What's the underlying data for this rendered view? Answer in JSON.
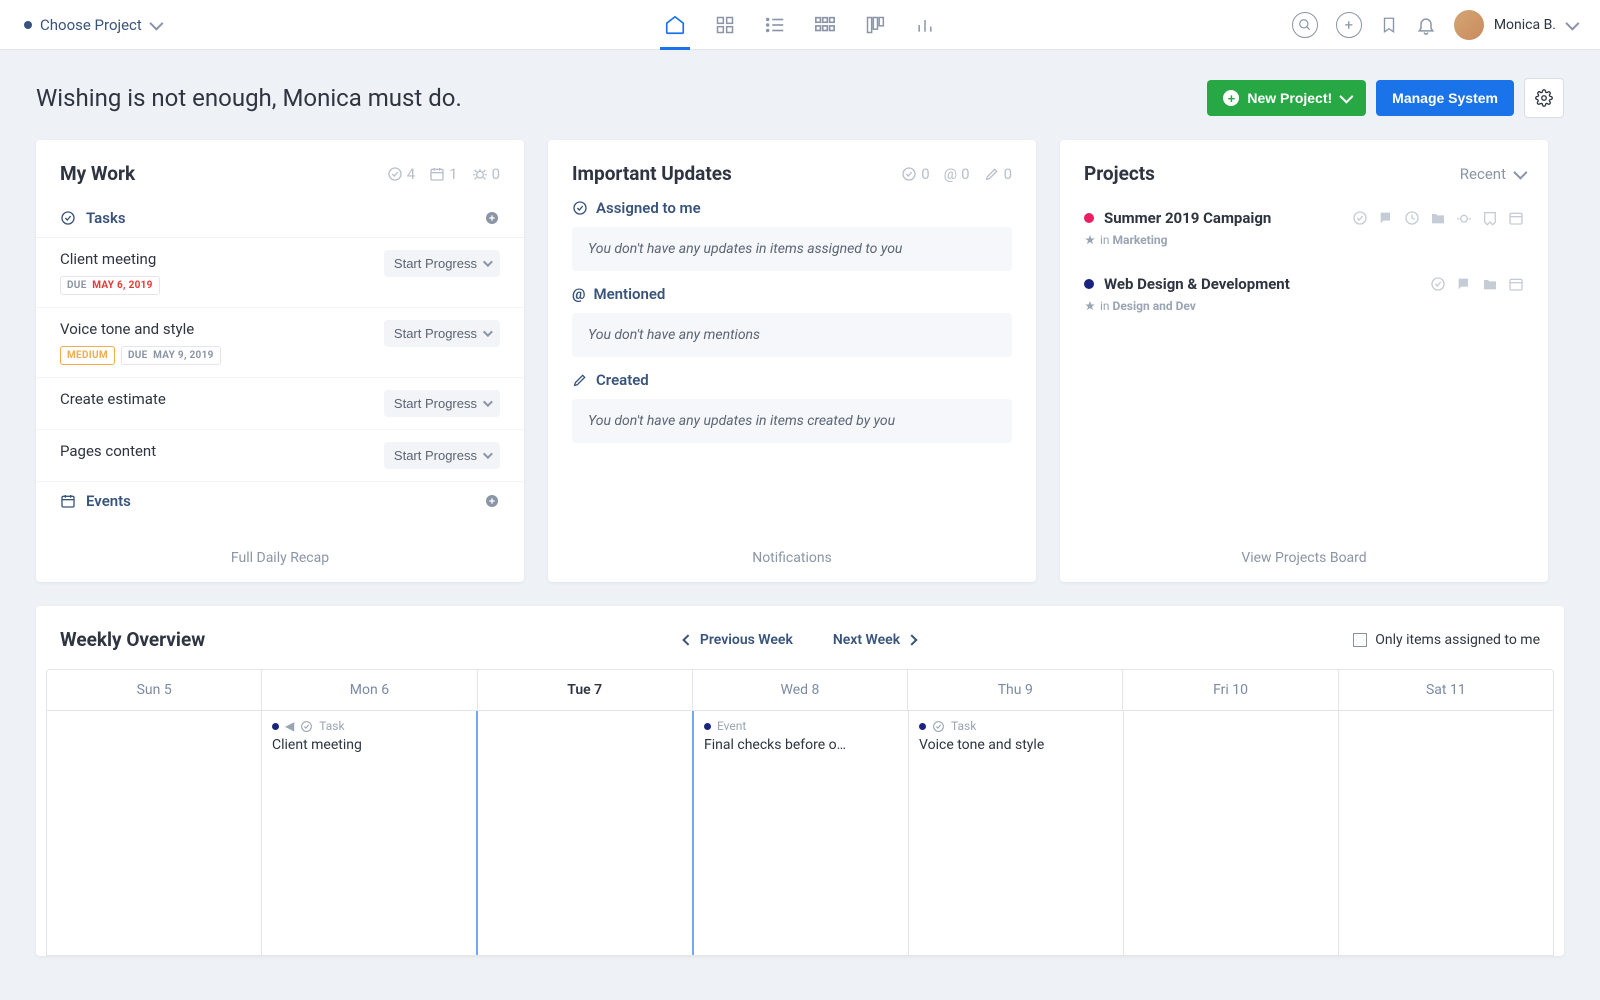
{
  "topbar": {
    "project_chooser": "Choose Project",
    "user_name": "Monica B."
  },
  "header": {
    "greeting": "Wishing is not enough, Monica must do.",
    "new_project_label": "New Project!",
    "manage_system_label": "Manage System"
  },
  "mywork": {
    "title": "My Work",
    "counts": {
      "done": "4",
      "calendar": "1",
      "bug": "0"
    },
    "tasks_label": "Tasks",
    "events_label": "Events",
    "footer": "Full Daily Recap",
    "start_label": "Start Progress",
    "tasks": [
      {
        "title": "Client meeting",
        "due_prefix": "DUE",
        "due_date": "MAY 6, 2019",
        "due_color": "#e53935",
        "priority": null
      },
      {
        "title": "Voice tone and style",
        "due_prefix": "DUE",
        "due_date": "MAY 9, 2019",
        "due_color": "#8a95a6",
        "priority": "MEDIUM"
      },
      {
        "title": "Create estimate",
        "due_prefix": null,
        "due_date": null,
        "due_color": null,
        "priority": null
      },
      {
        "title": "Pages content",
        "due_prefix": null,
        "due_date": null,
        "due_color": null,
        "priority": null
      }
    ]
  },
  "updates": {
    "title": "Important Updates",
    "counts": {
      "check": "0",
      "at": "0",
      "pencil": "0"
    },
    "sections": [
      {
        "icon": "check",
        "label": "Assigned to me",
        "empty": "You don't have any updates in items assigned to you"
      },
      {
        "icon": "at",
        "label": "Mentioned",
        "empty": "You don't have any mentions"
      },
      {
        "icon": "pencil",
        "label": "Created",
        "empty": "You don't have any updates in items created by you"
      }
    ],
    "footer": "Notifications"
  },
  "projects": {
    "title": "Projects",
    "filter": "Recent",
    "footer": "View Projects Board",
    "items": [
      {
        "name": "Summer 2019 Campaign",
        "dot_color": "#e91e63",
        "sub_prefix": "in",
        "sub": "Marketing",
        "icon_count": 7
      },
      {
        "name": "Web Design & Development",
        "dot_color": "#1a237e",
        "sub_prefix": "in",
        "sub": "Design and Dev",
        "icon_count": 4
      }
    ]
  },
  "weekly": {
    "title": "Weekly Overview",
    "prev": "Previous Week",
    "next": "Next Week",
    "filter_label": "Only items assigned to me",
    "days": [
      {
        "label": "Sun 5",
        "today": false
      },
      {
        "label": "Mon 6",
        "today": false
      },
      {
        "label": "Tue 7",
        "today": true
      },
      {
        "label": "Wed 8",
        "today": false
      },
      {
        "label": "Thu 9",
        "today": false
      },
      {
        "label": "Fri 10",
        "today": false
      },
      {
        "label": "Sat 11",
        "today": false
      }
    ],
    "items": [
      {
        "day": 1,
        "type": "Task",
        "title": "Client meeting",
        "dot": "#1a237e",
        "show_arrow": true
      },
      {
        "day": 3,
        "type": "Event",
        "title": "Final checks before o…",
        "dot": "#1a237e",
        "show_arrow": false
      },
      {
        "day": 4,
        "type": "Task",
        "title": "Voice tone and style",
        "dot": "#1a237e",
        "show_arrow": false
      }
    ]
  },
  "colors": {
    "green": "#28a745",
    "blue": "#1a73e8",
    "bg": "#eef1f5"
  }
}
